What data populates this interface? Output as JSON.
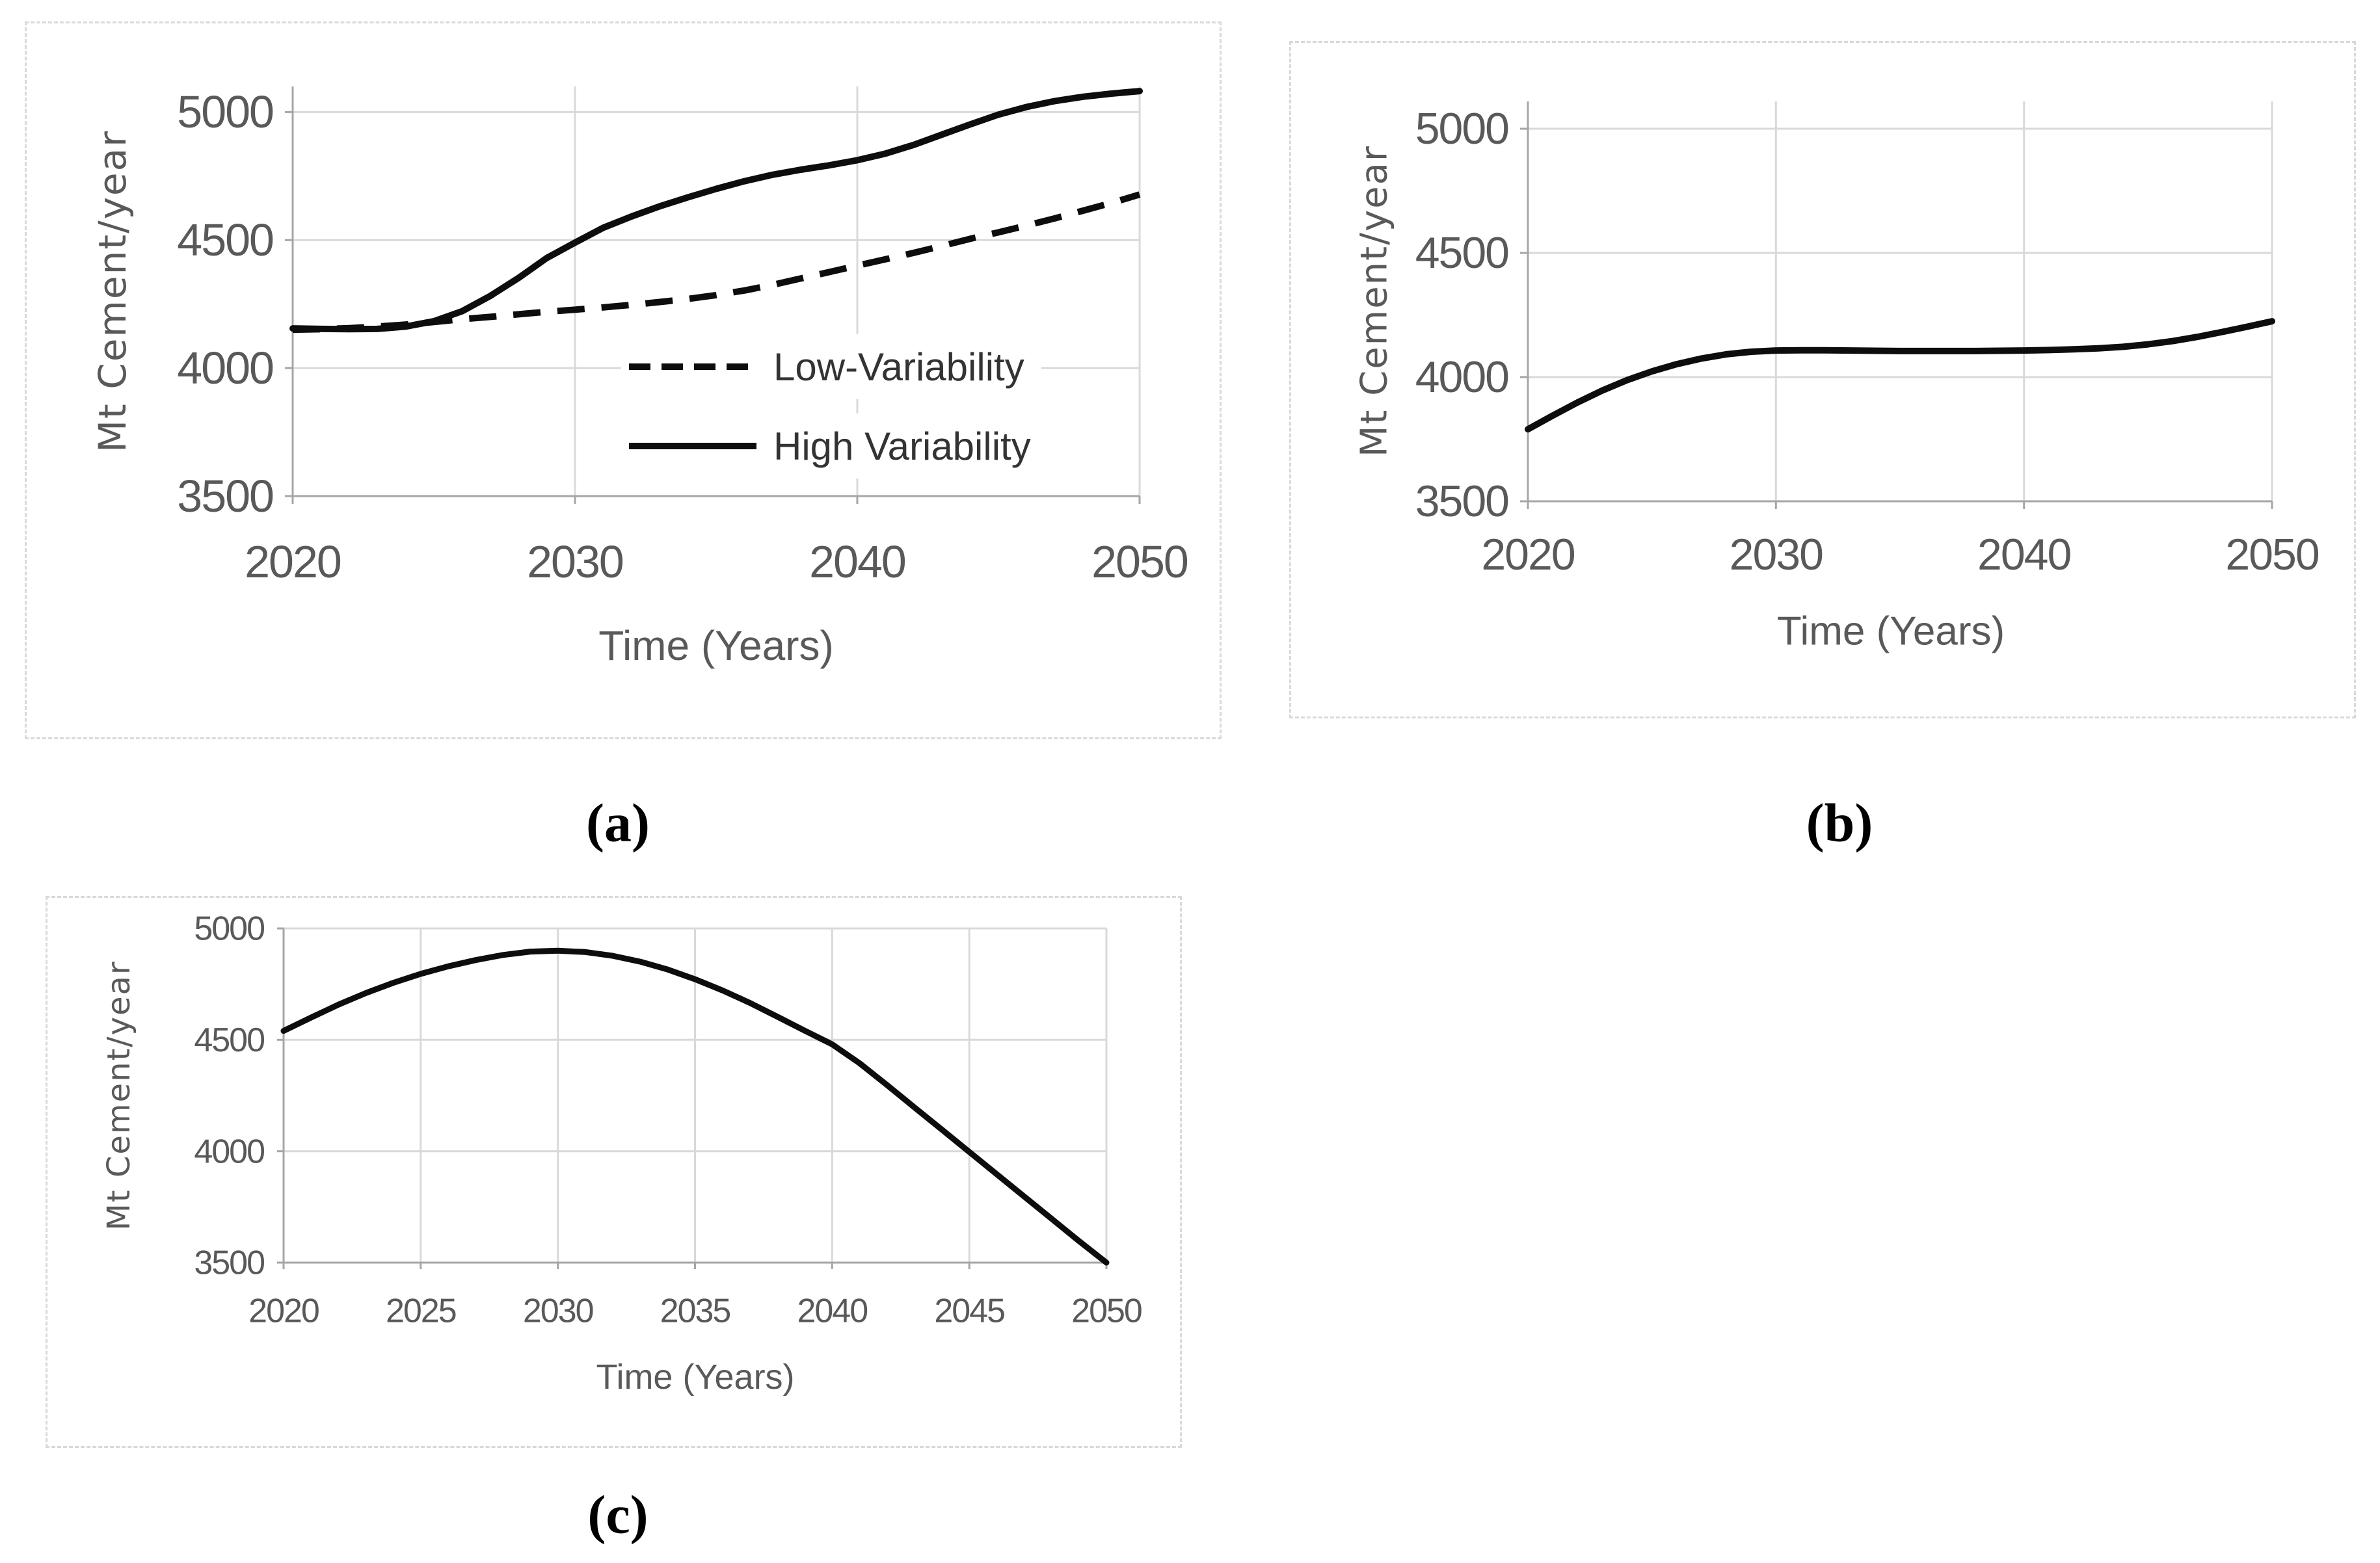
{
  "figure": {
    "background": "#ffffff"
  },
  "panel_labels": {
    "a": "(a)",
    "b": "(b)",
    "c": "(c)"
  },
  "colors": {
    "series": "#0d0d0d",
    "gridline": "#d9d9d9",
    "axis": "#a6a6a6",
    "tick_text": "#595959",
    "axis_title_text": "#595959",
    "legend_text": "#333333",
    "panel_border": "#d9d9d9",
    "caption_text": "#000000"
  },
  "chart_data": [
    {
      "id": "a",
      "type": "line",
      "title": "",
      "xlabel": "Time (Years)",
      "ylabel": "Mt Cement/year",
      "xlim": [
        2020,
        2050
      ],
      "ylim": [
        3500,
        5100
      ],
      "xticks": [
        2020,
        2030,
        2040,
        2050
      ],
      "yticks": [
        3500,
        4000,
        4500,
        5000
      ],
      "grid": true,
      "legend_position": "inside-right",
      "x": [
        2020,
        2021,
        2022,
        2023,
        2024,
        2025,
        2026,
        2027,
        2028,
        2029,
        2030,
        2031,
        2032,
        2033,
        2034,
        2035,
        2036,
        2037,
        2038,
        2039,
        2040,
        2041,
        2042,
        2043,
        2044,
        2045,
        2046,
        2047,
        2048,
        2049,
        2050
      ],
      "series": [
        {
          "name": "Low-Variability",
          "style": "dashed",
          "values": [
            4150,
            4152,
            4156,
            4162,
            4170,
            4180,
            4191,
            4200,
            4210,
            4220,
            4228,
            4237,
            4247,
            4258,
            4270,
            4285,
            4303,
            4325,
            4350,
            4375,
            4400,
            4425,
            4450,
            4477,
            4505,
            4530,
            4557,
            4585,
            4615,
            4645,
            4678
          ]
        },
        {
          "name": "High Variability",
          "style": "solid",
          "values": [
            4155,
            4153,
            4152,
            4153,
            4162,
            4183,
            4222,
            4282,
            4352,
            4430,
            4490,
            4548,
            4592,
            4632,
            4667,
            4700,
            4730,
            4755,
            4775,
            4792,
            4812,
            4838,
            4872,
            4912,
            4952,
            4990,
            5020,
            5043,
            5060,
            5072,
            5082
          ]
        }
      ]
    },
    {
      "id": "b",
      "type": "line",
      "title": "",
      "xlabel": "Time (Years)",
      "ylabel": "Mt Cement/year",
      "xlim": [
        2020,
        2050
      ],
      "ylim": [
        3500,
        5110
      ],
      "xticks": [
        2020,
        2030,
        2040,
        2050
      ],
      "yticks": [
        3500,
        4000,
        4500,
        5000
      ],
      "grid": true,
      "legend_position": "none",
      "x": [
        2020,
        2021,
        2022,
        2023,
        2024,
        2025,
        2026,
        2027,
        2028,
        2029,
        2030,
        2031,
        2032,
        2033,
        2034,
        2035,
        2036,
        2037,
        2038,
        2039,
        2040,
        2041,
        2042,
        2043,
        2044,
        2045,
        2046,
        2047,
        2048,
        2049,
        2050
      ],
      "series": [
        {
          "name": "",
          "style": "solid",
          "values": [
            3790,
            3845,
            3898,
            3946,
            3988,
            4023,
            4052,
            4075,
            4092,
            4102,
            4107,
            4108,
            4108,
            4107,
            4106,
            4105,
            4105,
            4105,
            4105,
            4106,
            4107,
            4109,
            4112,
            4116,
            4122,
            4132,
            4145,
            4162,
            4182,
            4203,
            4225
          ]
        }
      ]
    },
    {
      "id": "c",
      "type": "line",
      "title": "",
      "xlabel": "Time (Years)",
      "ylabel": "Mt Cement/year",
      "xlim": [
        2020,
        2050
      ],
      "ylim": [
        3500,
        5000
      ],
      "xticks": [
        2020,
        2025,
        2030,
        2035,
        2040,
        2045,
        2050
      ],
      "yticks": [
        3500,
        4000,
        4500,
        5000
      ],
      "grid": true,
      "legend_position": "none",
      "x": [
        2020,
        2021,
        2022,
        2023,
        2024,
        2025,
        2026,
        2027,
        2028,
        2029,
        2030,
        2031,
        2032,
        2033,
        2034,
        2035,
        2036,
        2037,
        2038,
        2039,
        2040,
        2041,
        2042,
        2043,
        2044,
        2045,
        2046,
        2047,
        2048,
        2049,
        2050
      ],
      "series": [
        {
          "name": "",
          "style": "solid",
          "values": [
            4540,
            4600,
            4658,
            4710,
            4756,
            4796,
            4830,
            4858,
            4881,
            4896,
            4900,
            4894,
            4877,
            4851,
            4816,
            4772,
            4722,
            4666,
            4604,
            4541,
            4480,
            4395,
            4297,
            4197,
            4097,
            3997,
            3897,
            3797,
            3697,
            3597,
            3500
          ]
        }
      ]
    }
  ]
}
